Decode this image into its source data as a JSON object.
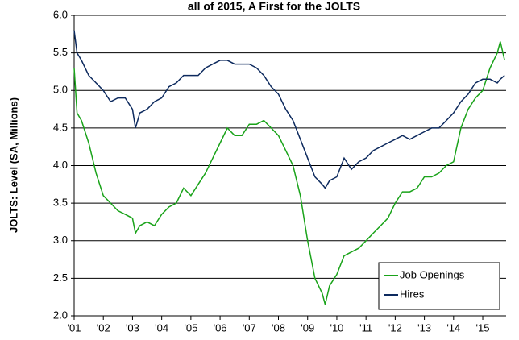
{
  "chart_data": {
    "type": "line",
    "title": "all of 2015, A First for the JOLTS",
    "y_label": "JOLTS: Level (SA, Millions)",
    "x": [
      2001,
      2001.1,
      2001.25,
      2001.5,
      2001.75,
      2002,
      2002.25,
      2002.5,
      2002.75,
      2003,
      2003.1,
      2003.25,
      2003.5,
      2003.75,
      2004,
      2004.25,
      2004.5,
      2004.75,
      2005,
      2005.25,
      2005.5,
      2005.75,
      2006,
      2006.25,
      2006.5,
      2006.75,
      2007,
      2007.25,
      2007.5,
      2007.75,
      2008,
      2008.25,
      2008.5,
      2008.75,
      2009,
      2009.25,
      2009.5,
      2009.6,
      2009.75,
      2010,
      2010.25,
      2010.5,
      2010.75,
      2011,
      2011.25,
      2011.5,
      2011.75,
      2012,
      2012.25,
      2012.5,
      2012.75,
      2013,
      2013.25,
      2013.5,
      2013.75,
      2014,
      2014.25,
      2014.5,
      2014.75,
      2015,
      2015.25,
      2015.5,
      2015.6,
      2015.75
    ],
    "series": [
      {
        "name": "Job Openings",
        "color": "#1aa31a",
        "values": [
          5.3,
          4.7,
          4.6,
          4.3,
          3.9,
          3.6,
          3.5,
          3.4,
          3.35,
          3.3,
          3.1,
          3.2,
          3.25,
          3.2,
          3.35,
          3.45,
          3.5,
          3.7,
          3.6,
          3.75,
          3.9,
          4.1,
          4.3,
          4.5,
          4.4,
          4.4,
          4.55,
          4.55,
          4.6,
          4.5,
          4.4,
          4.2,
          4.0,
          3.6,
          3.0,
          2.5,
          2.3,
          2.15,
          2.4,
          2.55,
          2.8,
          2.85,
          2.9,
          3.0,
          3.1,
          3.2,
          3.3,
          3.5,
          3.65,
          3.65,
          3.7,
          3.85,
          3.85,
          3.9,
          4.0,
          4.05,
          4.5,
          4.75,
          4.9,
          5.0,
          5.3,
          5.5,
          5.65,
          5.4
        ]
      },
      {
        "name": "Hires",
        "color": "#0d2a5e",
        "values": [
          5.8,
          5.5,
          5.4,
          5.2,
          5.1,
          5.0,
          4.85,
          4.9,
          4.9,
          4.75,
          4.5,
          4.7,
          4.75,
          4.85,
          4.9,
          5.05,
          5.1,
          5.2,
          5.2,
          5.2,
          5.3,
          5.35,
          5.4,
          5.4,
          5.35,
          5.35,
          5.35,
          5.3,
          5.2,
          5.05,
          4.95,
          4.75,
          4.6,
          4.35,
          4.1,
          3.85,
          3.75,
          3.7,
          3.8,
          3.85,
          4.1,
          3.95,
          4.05,
          4.1,
          4.2,
          4.25,
          4.3,
          4.35,
          4.4,
          4.35,
          4.4,
          4.45,
          4.5,
          4.5,
          4.6,
          4.7,
          4.85,
          4.95,
          5.1,
          5.15,
          5.15,
          5.1,
          5.15,
          5.2
        ]
      }
    ],
    "xlim": [
      2001,
      2015.8
    ],
    "xticks": [
      {
        "value": 2001,
        "label": "'01"
      },
      {
        "value": 2002,
        "label": "'02"
      },
      {
        "value": 2003,
        "label": "'03"
      },
      {
        "value": 2004,
        "label": "'04"
      },
      {
        "value": 2005,
        "label": "'05"
      },
      {
        "value": 2006,
        "label": "'06"
      },
      {
        "value": 2007,
        "label": "'07"
      },
      {
        "value": 2008,
        "label": "'08"
      },
      {
        "value": 2009,
        "label": "'09"
      },
      {
        "value": 2010,
        "label": "'10"
      },
      {
        "value": 2011,
        "label": "'11"
      },
      {
        "value": 2012,
        "label": "'12"
      },
      {
        "value": 2013,
        "label": "'13"
      },
      {
        "value": 2014,
        "label": "'14"
      },
      {
        "value": 2015,
        "label": "'15"
      }
    ],
    "ylim": [
      2.0,
      6.0
    ],
    "yticks": [
      {
        "value": 2.0,
        "label": "2.0"
      },
      2.5,
      {
        "value": 3.0,
        "label": "3.0"
      },
      3.5,
      {
        "value": 4.0,
        "label": "4.0"
      },
      4.5,
      {
        "value": 5.0,
        "label": "5.0"
      },
      5.5,
      {
        "value": 6.0,
        "label": "6.0"
      }
    ],
    "grid": true,
    "legend": "lower right"
  }
}
